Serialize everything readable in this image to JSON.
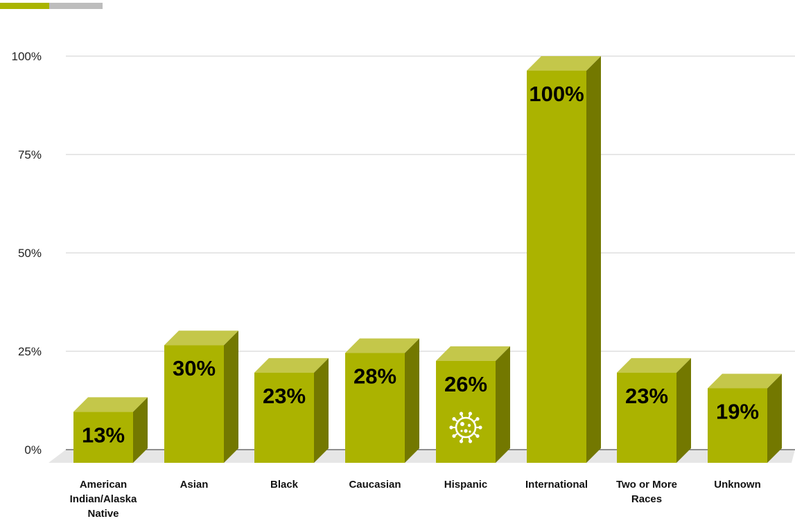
{
  "colors": {
    "accent_primary": "#a9b400",
    "accent_secondary": "#bdbdbd",
    "bar_front": "#abb300",
    "bar_top": "#c4c74a",
    "bar_side": "#737800",
    "grid": "#cfcfcf",
    "floor": "#e6e6e6"
  },
  "chart_data": {
    "type": "bar",
    "title": "",
    "xlabel": "",
    "ylabel": "",
    "ylim": [
      0,
      100
    ],
    "yticks": [
      "0%",
      "25%",
      "50%",
      "75%",
      "100%"
    ],
    "ytick_values": [
      0,
      25,
      50,
      75,
      100
    ],
    "grid": true,
    "categories": [
      [
        "American",
        "Indian/Alaska",
        "Native"
      ],
      [
        "Asian"
      ],
      [
        "Black"
      ],
      [
        "Caucasian"
      ],
      [
        "Hispanic"
      ],
      [
        "International"
      ],
      [
        "Two or More",
        "Races"
      ],
      [
        "Unknown"
      ]
    ],
    "values": [
      13,
      30,
      23,
      28,
      26,
      100,
      23,
      19
    ],
    "value_labels": [
      "13%",
      "30%",
      "23%",
      "28%",
      "26%",
      "100%",
      "23%",
      "19%"
    ],
    "annotation_icon": {
      "category_index": 4,
      "icon": "virus-icon"
    }
  }
}
